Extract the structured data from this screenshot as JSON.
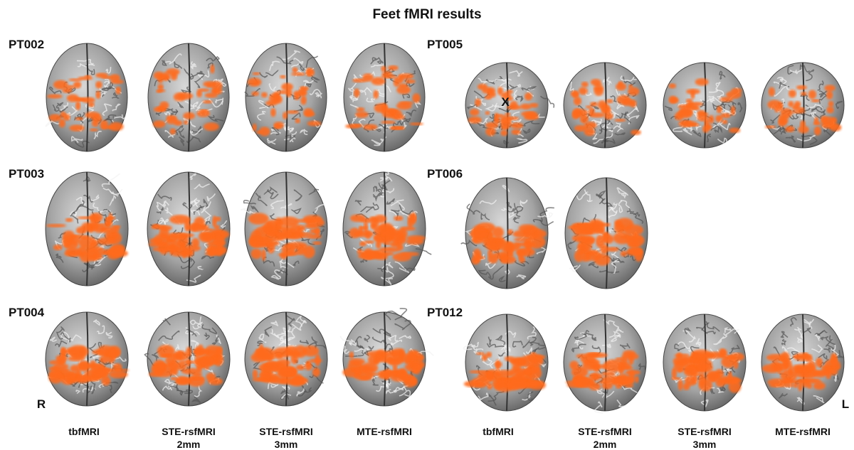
{
  "title": "Feet fMRI results",
  "patients": [
    {
      "label": "PT002"
    },
    {
      "label": "PT003"
    },
    {
      "label": "PT004"
    },
    {
      "label": "PT005"
    },
    {
      "label": "PT006"
    },
    {
      "label": "PT012"
    }
  ],
  "columns": [
    {
      "lines": [
        "tbfMRI"
      ]
    },
    {
      "lines": [
        "STE-rsfMRI",
        "2mm"
      ]
    },
    {
      "lines": [
        "STE-rsfMRI",
        "3mm"
      ]
    },
    {
      "lines": [
        "MTE-rsfMRI"
      ]
    }
  ],
  "orientation": {
    "right": "R",
    "left": "L"
  },
  "marker": "X"
}
